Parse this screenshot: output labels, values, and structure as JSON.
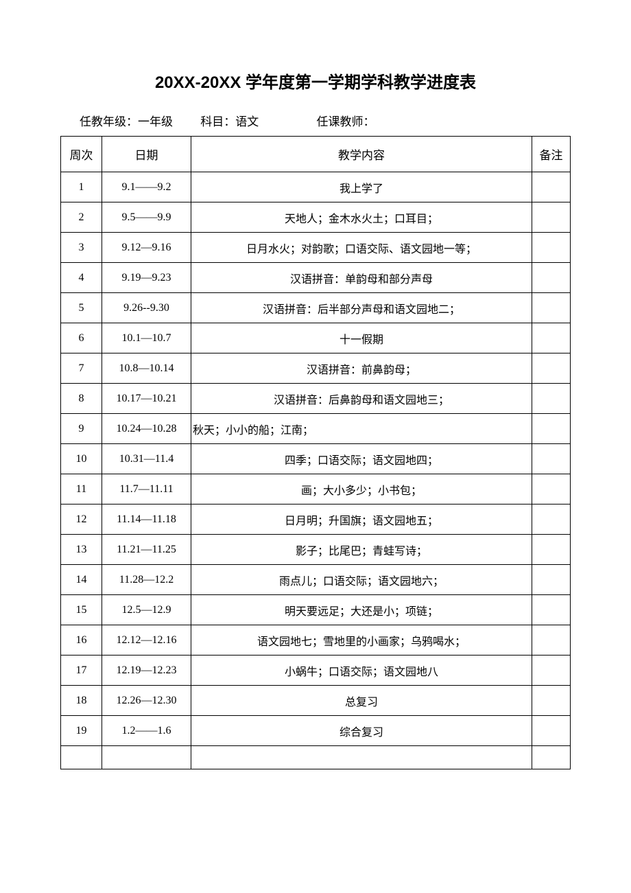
{
  "title": "20XX-20XX 学年度第一学期学科教学进度表",
  "subtitle": {
    "grade_label": "任教年级：",
    "grade_value": "一年级",
    "subject_label": "科目：",
    "subject_value": "语文",
    "teacher_label": "任课教师："
  },
  "table": {
    "headers": {
      "week": "周次",
      "date": "日期",
      "content": "教学内容",
      "note": "备注"
    },
    "rows": [
      {
        "week": "1",
        "date": "9.1——9.2",
        "content": "我上学了",
        "note": "",
        "left": false
      },
      {
        "week": "2",
        "date": "9.5——9.9",
        "content": "天地人；金木水火土；口耳目；",
        "note": "",
        "left": false
      },
      {
        "week": "3",
        "date": "9.12—9.16",
        "content": "日月水火；对韵歌；口语交际、语文园地一等；",
        "note": "",
        "left": false
      },
      {
        "week": "4",
        "date": "9.19—9.23",
        "content": "汉语拼音：单韵母和部分声母",
        "note": "",
        "left": false
      },
      {
        "week": "5",
        "date": "9.26--9.30",
        "content": "汉语拼音：后半部分声母和语文园地二；",
        "note": "",
        "left": false
      },
      {
        "week": "6",
        "date": "10.1—10.7",
        "content": "十一假期",
        "note": "",
        "left": false
      },
      {
        "week": "7",
        "date": "10.8—10.14",
        "content": "汉语拼音：前鼻韵母；",
        "note": "",
        "left": false
      },
      {
        "week": "8",
        "date": "10.17—10.21",
        "content": "汉语拼音：后鼻韵母和语文园地三；",
        "note": "",
        "left": false
      },
      {
        "week": "9",
        "date": "10.24—10.28",
        "content": "秋天；小小的船；江南；",
        "note": "",
        "left": true
      },
      {
        "week": "10",
        "date": "10.31—11.4",
        "content": "四季；口语交际；语文园地四；",
        "note": "",
        "left": false
      },
      {
        "week": "11",
        "date": "11.7—11.11",
        "content": "画；大小多少；小书包；",
        "note": "",
        "left": false
      },
      {
        "week": "12",
        "date": "11.14—11.18",
        "content": "日月明；升国旗；语文园地五；",
        "note": "",
        "left": false
      },
      {
        "week": "13",
        "date": "11.21—11.25",
        "content": "影子；比尾巴；青蛙写诗；",
        "note": "",
        "left": false
      },
      {
        "week": "14",
        "date": "11.28—12.2",
        "content": "雨点儿；口语交际；语文园地六；",
        "note": "",
        "left": false
      },
      {
        "week": "15",
        "date": "12.5—12.9",
        "content": "明天要远足；大还是小；项链；",
        "note": "",
        "left": false
      },
      {
        "week": "16",
        "date": "12.12—12.16",
        "content": "语文园地七；雪地里的小画家；乌鸦喝水；",
        "note": "",
        "left": false
      },
      {
        "week": "17",
        "date": "12.19—12.23",
        "content": "小蜗牛；口语交际；语文园地八",
        "note": "",
        "left": false
      },
      {
        "week": "18",
        "date": "12.26—12.30",
        "content": "总复习",
        "note": "",
        "left": false
      },
      {
        "week": "19",
        "date": "1.2——1.6",
        "content": "综合复习",
        "note": "",
        "left": false
      }
    ]
  },
  "styling": {
    "background_color": "#ffffff",
    "border_color": "#000000",
    "title_fontsize": 24,
    "header_fontsize": 17,
    "cell_fontsize": 16,
    "col_widths": {
      "week": 60,
      "date": 130,
      "note": 56
    }
  }
}
